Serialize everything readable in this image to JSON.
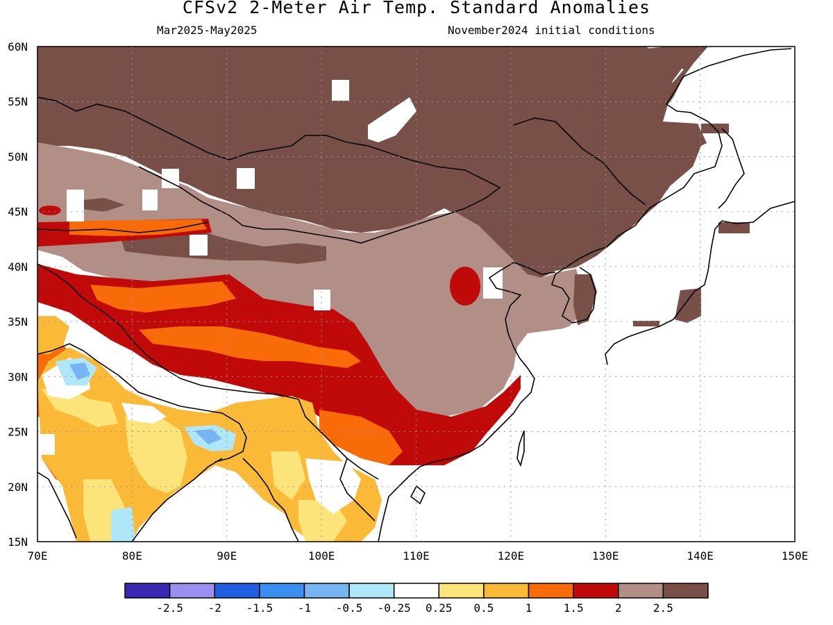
{
  "title": "CFSv2 2-Meter Air Temp. Standard Anomalies",
  "period": "Mar2025-May2025",
  "initial_conditions": "November2024 initial conditions",
  "map": {
    "lon_range": [
      70,
      150
    ],
    "lat_range": [
      15,
      60
    ],
    "lon_ticks": [
      "70E",
      "80E",
      "90E",
      "100E",
      "110E",
      "120E",
      "130E",
      "140E",
      "150E"
    ],
    "lat_ticks": [
      "60N",
      "55N",
      "50N",
      "45N",
      "40N",
      "35N",
      "30N",
      "25N",
      "20N",
      "15N"
    ],
    "grid": "dotted"
  },
  "legend": {
    "colors": [
      "#3a28b0",
      "#9a8ff0",
      "#1f5fe0",
      "#3b8ef0",
      "#76b4f4",
      "#aee8f8",
      "#ffffff",
      "#fde47a",
      "#fbb938",
      "#f96a08",
      "#c00a0a",
      "#b28f86",
      "#785048"
    ],
    "labels": [
      "-2.5",
      "-2",
      "-1.5",
      "-1",
      "-0.5",
      "-0.25",
      "0.25",
      "0.5",
      "1",
      "1.5",
      "2",
      "2.5"
    ]
  }
}
